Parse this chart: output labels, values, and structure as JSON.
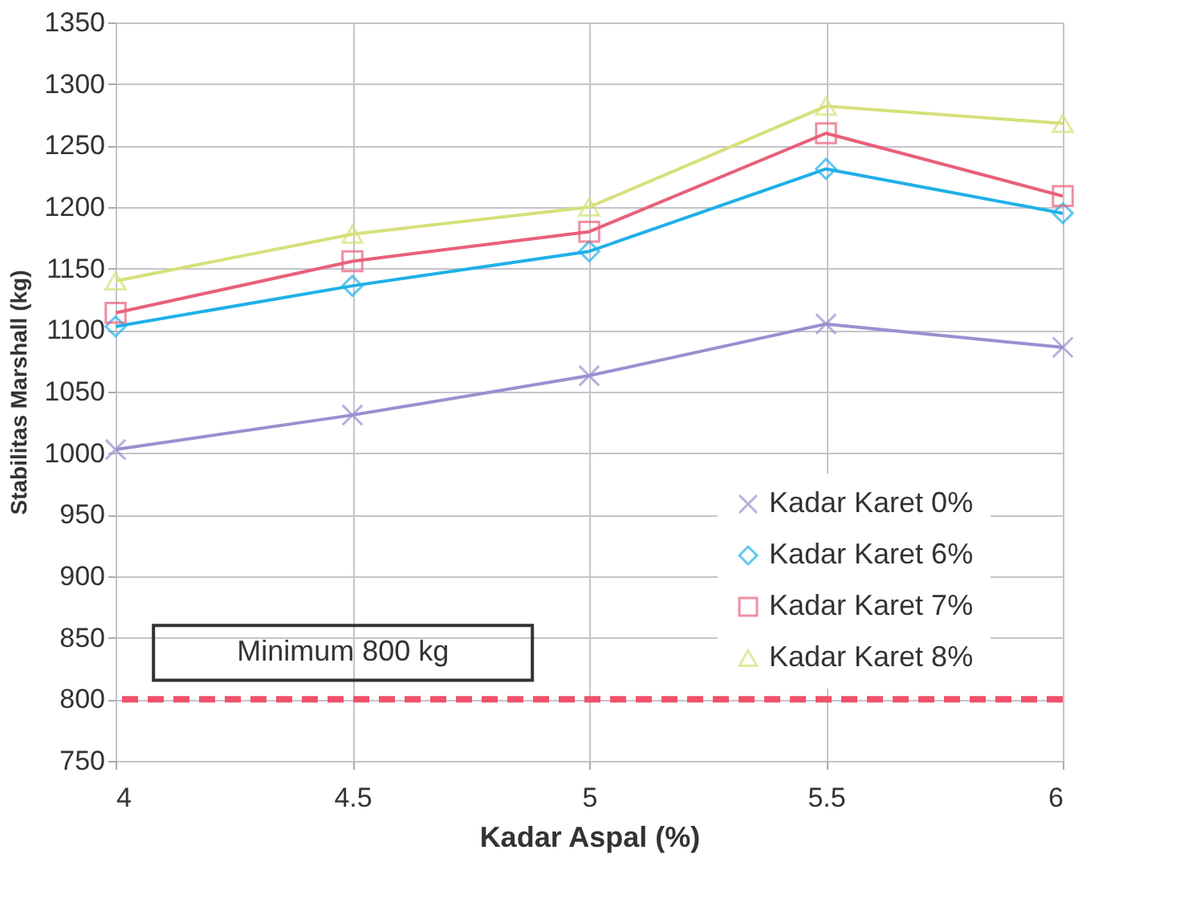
{
  "chart_data": {
    "type": "line",
    "xlabel": "Kadar Aspal (%)",
    "ylabel": "Stabilitas Marshall (kg)",
    "x": [
      4,
      4.5,
      5,
      5.5,
      6
    ],
    "series": [
      {
        "name": "Kadar Karet 0%",
        "color": "#9a8fd0",
        "marker": "cross",
        "values": [
          1003,
          1031,
          1063,
          1105,
          1086
        ]
      },
      {
        "name": "Kadar Karet 6%",
        "color": "#1fb0e8",
        "marker": "diamond",
        "values": [
          1103,
          1136,
          1164,
          1231,
          1195
        ]
      },
      {
        "name": "Kadar Karet 7%",
        "color": "#e8607a",
        "marker": "square",
        "values": [
          1114,
          1156,
          1180,
          1260,
          1209
        ]
      },
      {
        "name": "Kadar Karet 8%",
        "color": "#d6e07a",
        "marker": "triangle",
        "values": [
          1140,
          1178,
          1200,
          1282,
          1268
        ]
      }
    ],
    "xlim": [
      4,
      6
    ],
    "xticks": [
      4,
      4.5,
      5,
      5.5,
      6
    ],
    "ylim": [
      750,
      1350
    ],
    "yticks": [
      750,
      800,
      850,
      900,
      950,
      1000,
      1050,
      1100,
      1150,
      1200,
      1250,
      1300,
      1350
    ],
    "ref_lines": [
      {
        "axis": "y",
        "value": 800,
        "label": "Minimum 800 kg",
        "color": "#f0506a",
        "line_style": "dashed"
      }
    ],
    "grid": true,
    "legend": "bottom right",
    "line_style": "solid"
  }
}
